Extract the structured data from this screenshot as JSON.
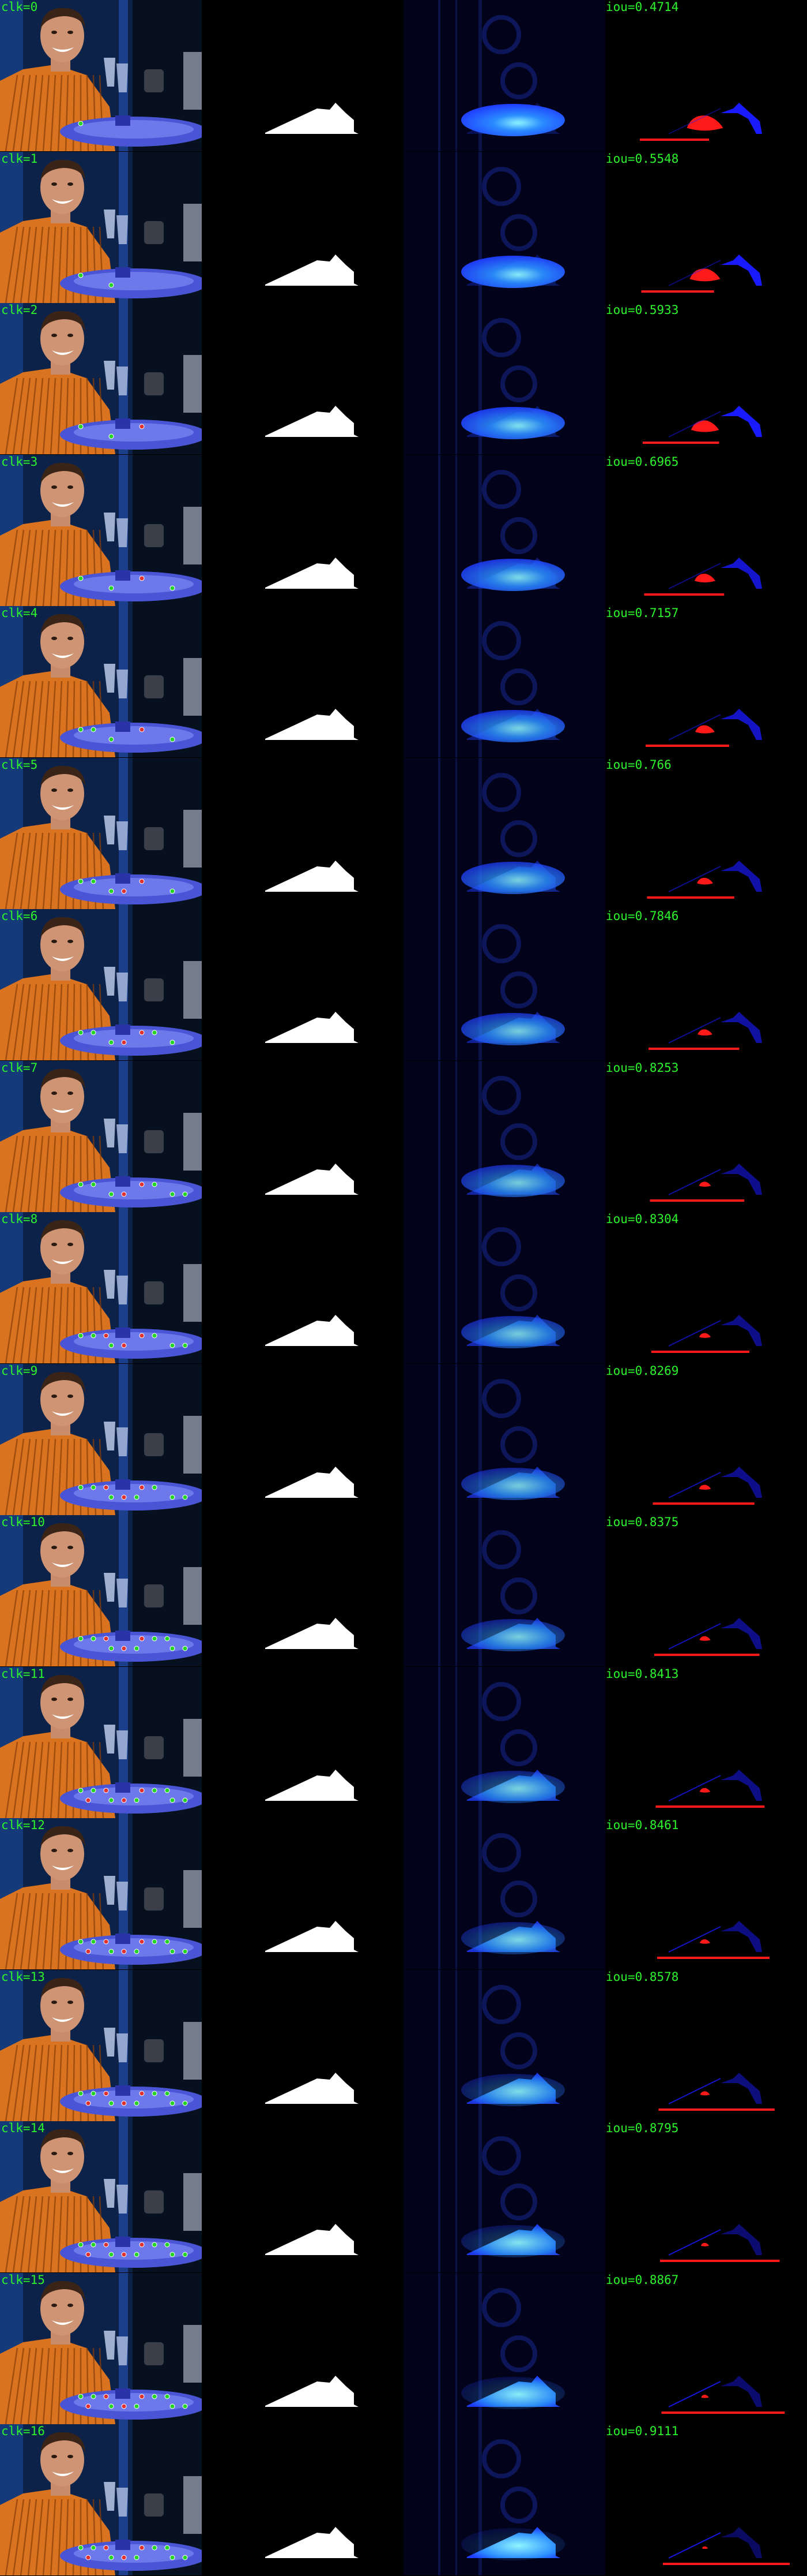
{
  "rows": [
    {
      "clk": "clk=0",
      "iou": "iou=0.4714",
      "iou_value": 0.4714
    },
    {
      "clk": "clk=1",
      "iou": "iou=0.5548",
      "iou_value": 0.5548
    },
    {
      "clk": "clk=2",
      "iou": "iou=0.5933",
      "iou_value": 0.5933
    },
    {
      "clk": "clk=3",
      "iou": "iou=0.6965",
      "iou_value": 0.6965
    },
    {
      "clk": "clk=4",
      "iou": "iou=0.7157",
      "iou_value": 0.7157
    },
    {
      "clk": "clk=5",
      "iou": "iou=0.766",
      "iou_value": 0.766
    },
    {
      "clk": "clk=6",
      "iou": "iou=0.7846",
      "iou_value": 0.7846
    },
    {
      "clk": "clk=7",
      "iou": "iou=0.8253",
      "iou_value": 0.8253
    },
    {
      "clk": "clk=8",
      "iou": "iou=0.8304",
      "iou_value": 0.8304
    },
    {
      "clk": "clk=9",
      "iou": "iou=0.8269",
      "iou_value": 0.8269
    },
    {
      "clk": "clk=10",
      "iou": "iou=0.8375",
      "iou_value": 0.8375
    },
    {
      "clk": "clk=11",
      "iou": "iou=0.8413",
      "iou_value": 0.8413
    },
    {
      "clk": "clk=12",
      "iou": "iou=0.8461",
      "iou_value": 0.8461
    },
    {
      "clk": "clk=13",
      "iou": "iou=0.8578",
      "iou_value": 0.8578
    },
    {
      "clk": "clk=14",
      "iou": "iou=0.8795",
      "iou_value": 0.8795
    },
    {
      "clk": "clk=15",
      "iou": "iou=0.8867",
      "iou_value": 0.8867
    },
    {
      "clk": "clk=16",
      "iou": "iou=0.9111",
      "iou_value": 0.9111
    }
  ],
  "colors": {
    "label_green": "#2df52d",
    "mask_white": "#ffffff",
    "false_positive_red": "#ff1a1a",
    "false_negative_blue": "#1a1aff",
    "prob_cyan": "#8ff6ff",
    "prob_blue": "#1f3cff",
    "shirt_orange": "#d9731f",
    "plate_blue": "#4a55d6"
  },
  "icons": {
    "click_marker": "circle-marker-icon"
  }
}
